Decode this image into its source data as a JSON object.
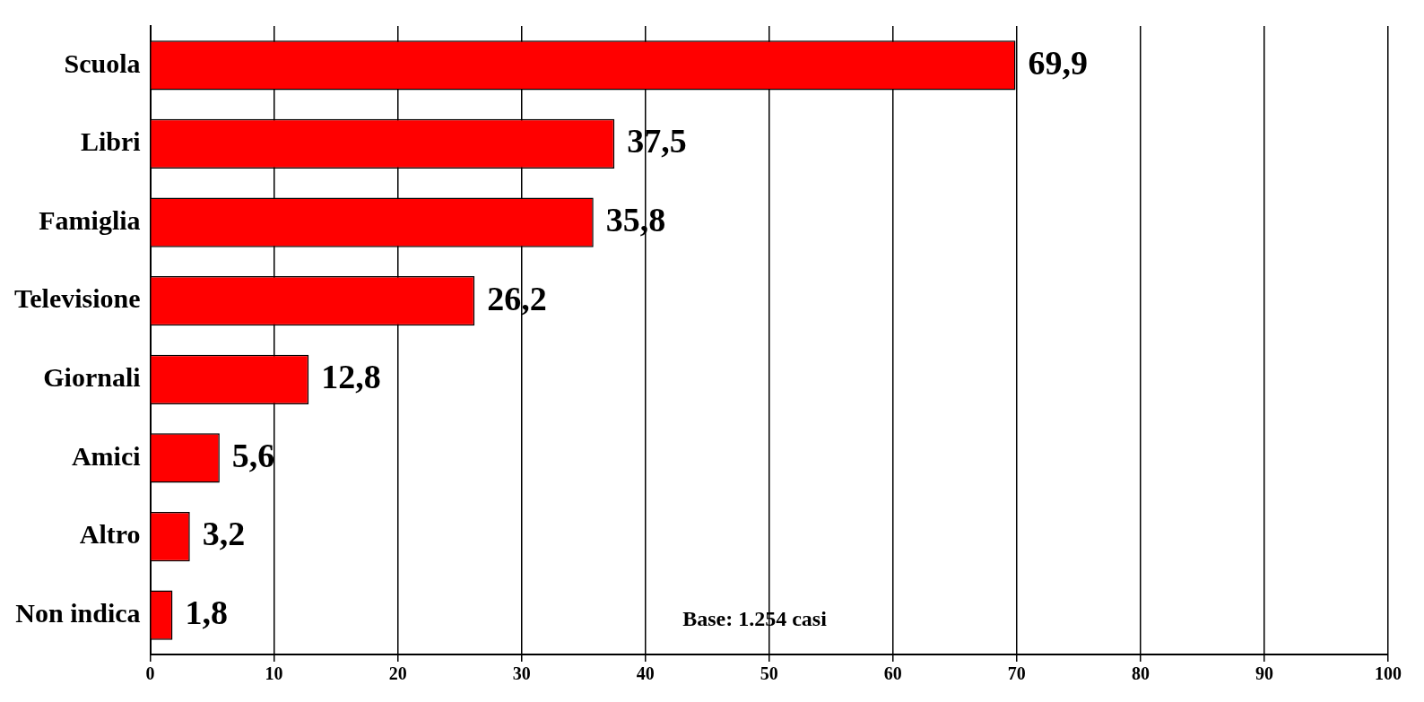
{
  "chart_data": {
    "type": "bar",
    "orientation": "horizontal",
    "categories": [
      "Scuola",
      "Libri",
      "Famiglia",
      "Televisione",
      "Giornali",
      "Amici",
      "Altro",
      "Non indica"
    ],
    "values": [
      69.9,
      37.5,
      35.8,
      26.2,
      12.8,
      5.6,
      3.2,
      1.8
    ],
    "value_labels": [
      "69,9",
      "37,5",
      "35,8",
      "26,2",
      "12,8",
      "5,6",
      "3,2",
      "1,8"
    ],
    "color": "#ff0000",
    "xlim": [
      0,
      100
    ],
    "xticks": [
      0,
      10,
      20,
      30,
      40,
      50,
      60,
      70,
      80,
      90,
      100
    ],
    "grid": "x",
    "annotations": [
      "Base: 1.254 casi"
    ]
  }
}
